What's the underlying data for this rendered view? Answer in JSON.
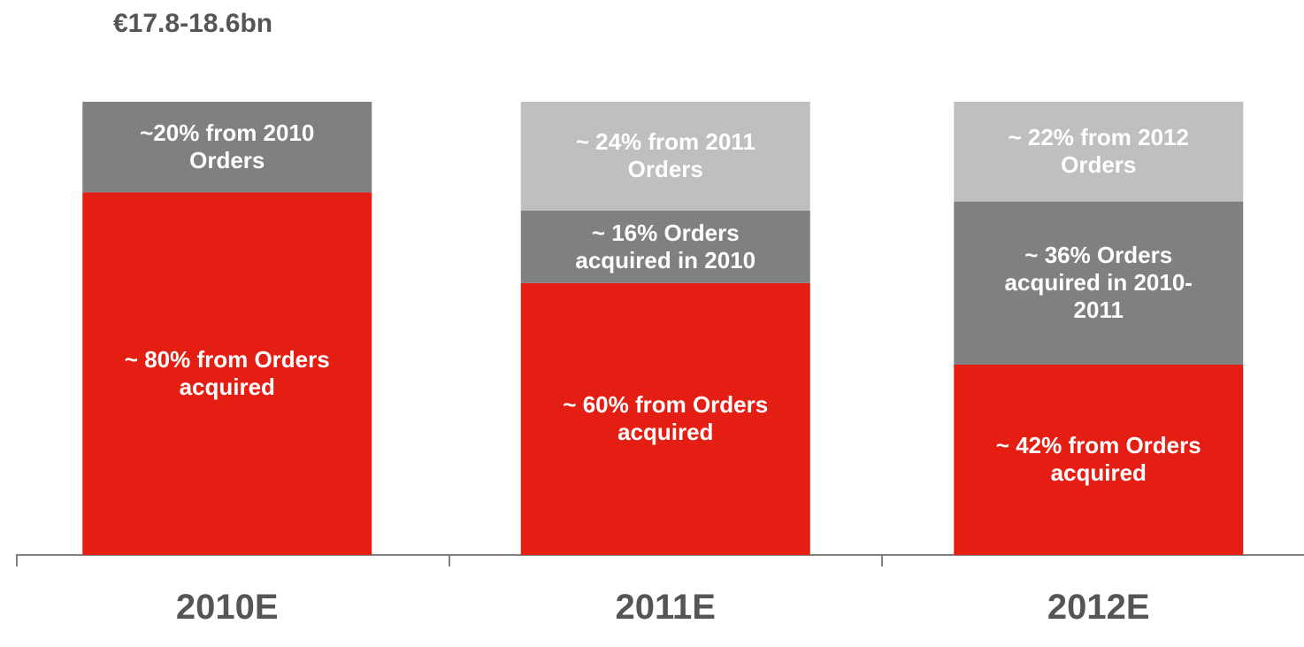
{
  "chart_data": {
    "type": "bar",
    "stacked": true,
    "title": "€17.8-18.6bn",
    "categories": [
      "2010E",
      "2011E",
      "2012E"
    ],
    "ylim": [
      0,
      100
    ],
    "series": [
      {
        "color": "#e41e12",
        "values": [
          80,
          60,
          42
        ],
        "value_labels": [
          "~ 80% from Orders acquired",
          "~ 60% from Orders acquired",
          "~ 42% from Orders acquired"
        ]
      },
      {
        "color": "#808080",
        "values": [
          20,
          16,
          36
        ],
        "value_labels": [
          "~20% from 2010 Orders",
          "~ 16% Orders acquired in 2010",
          "~ 36% Orders acquired in 2010-2011"
        ]
      },
      {
        "color": "#bfbfbf",
        "values": [
          null,
          24,
          22
        ],
        "value_labels": [
          null,
          "~ 24% from 2011 Orders",
          "~ 22% from 2012 Orders"
        ]
      }
    ]
  }
}
